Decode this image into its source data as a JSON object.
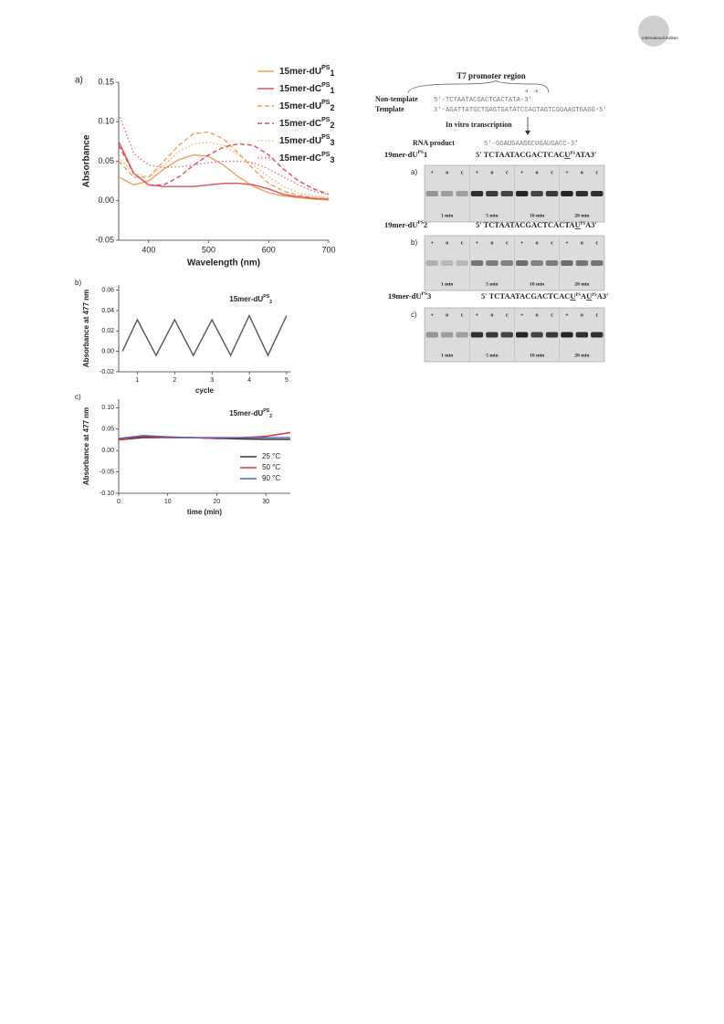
{
  "header": {
    "edition": "International Edition"
  },
  "chart_data": [
    {
      "type": "line",
      "panel": "a)",
      "xlabel": "Wavelength (nm)",
      "ylabel": "Absorbance",
      "xlim": [
        350,
        700
      ],
      "xticks": [
        400,
        500,
        600,
        700
      ],
      "ylim": [
        -0.05,
        0.15
      ],
      "yticks": [
        -0.05,
        {
          "value": 0,
          "label": "0.00"
        },
        0.05,
        {
          "value": 0.1,
          "label": "0.10"
        },
        0.15
      ],
      "legend": "upper right",
      "x": [
        350,
        375,
        400,
        425,
        450,
        475,
        500,
        525,
        550,
        575,
        600,
        625,
        650,
        675,
        700
      ],
      "series": [
        {
          "name": "15mer-dU",
          "name_sup": "PS",
          "name_sub": "1",
          "color": "#f2a05a",
          "dash": "solid",
          "values": [
            0.03,
            0.02,
            0.025,
            0.04,
            0.052,
            0.058,
            0.056,
            0.045,
            0.03,
            0.018,
            0.01,
            0.006,
            0.004,
            0.002,
            0.001
          ]
        },
        {
          "name": "15mer-dC",
          "name_sup": "PS",
          "name_sub": "1",
          "color": "#e0505a",
          "dash": "solid",
          "values": [
            0.075,
            0.035,
            0.02,
            0.018,
            0.018,
            0.018,
            0.02,
            0.022,
            0.022,
            0.02,
            0.015,
            0.008,
            0.005,
            0.003,
            0.002
          ]
        },
        {
          "name": "15mer-dU",
          "name_sup": "PS",
          "name_sub": "2",
          "color": "#f2a05a",
          "dash": "dashed",
          "values": [
            0.05,
            0.03,
            0.03,
            0.05,
            0.07,
            0.085,
            0.087,
            0.078,
            0.06,
            0.04,
            0.022,
            0.012,
            0.007,
            0.004,
            0.003
          ]
        },
        {
          "name": "15mer-dC",
          "name_sup": "PS",
          "name_sub": "2",
          "color": "#e0505a",
          "dash": "dashed",
          "values": [
            0.07,
            0.035,
            0.02,
            0.02,
            0.03,
            0.045,
            0.058,
            0.068,
            0.072,
            0.07,
            0.058,
            0.04,
            0.025,
            0.015,
            0.008
          ]
        },
        {
          "name": "15mer-dU",
          "name_sup": "PS",
          "name_sub": "3",
          "color": "#f5b26a",
          "dash": "dotted",
          "values": [
            0.055,
            0.035,
            0.03,
            0.045,
            0.062,
            0.072,
            0.074,
            0.07,
            0.058,
            0.045,
            0.03,
            0.018,
            0.01,
            0.006,
            0.004
          ]
        },
        {
          "name": "15mer-dC",
          "name_sup": "PS",
          "name_sub": "3",
          "color": "#e8708a",
          "dash": "dotted",
          "values": [
            0.11,
            0.06,
            0.045,
            0.042,
            0.043,
            0.045,
            0.048,
            0.05,
            0.05,
            0.048,
            0.04,
            0.03,
            0.02,
            0.012,
            0.008
          ]
        }
      ]
    },
    {
      "type": "line",
      "panel": "b)",
      "xlabel": "cycle",
      "ylabel": "Absorbance at 477 nm",
      "annotation": {
        "text": "15mer-dU",
        "sup": "PS",
        "sub": "2"
      },
      "xlim": [
        0.5,
        5.1
      ],
      "xticks": [
        1,
        2,
        3,
        4,
        5
      ],
      "ylim": [
        -0.02,
        0.065
      ],
      "yticks": [
        -0.02,
        {
          "value": 0,
          "label": "0.00"
        },
        0.02,
        0.04,
        0.06
      ],
      "x": [
        0.6,
        1,
        1.5,
        2,
        2.5,
        3,
        3.5,
        4,
        4.5,
        5
      ],
      "series": [
        {
          "color": "#555555",
          "dash": "solid",
          "values": [
            0.0,
            0.031,
            -0.004,
            0.031,
            -0.004,
            0.031,
            -0.004,
            0.035,
            -0.004,
            0.035
          ]
        }
      ]
    },
    {
      "type": "line",
      "panel": "c)",
      "xlabel": "time (min)",
      "ylabel": "Absorbance at 477 nm",
      "annotation": {
        "text": "15mer-dU",
        "sup": "PS",
        "sub": "2"
      },
      "legend": "lower right",
      "xlim": [
        0,
        35
      ],
      "xticks": [
        0,
        10,
        20,
        30
      ],
      "ylim": [
        -0.1,
        0.12
      ],
      "yticks": [
        {
          "value": -0.1,
          "label": "-0.10"
        },
        -0.05,
        {
          "value": 0,
          "label": "0.00"
        },
        0.05,
        {
          "value": 0.1,
          "label": "0.10"
        }
      ],
      "x": [
        0,
        5,
        10,
        15,
        20,
        25,
        30,
        35
      ],
      "series": [
        {
          "name": "25 °C",
          "color": "#333333",
          "dash": "solid",
          "values": [
            0.025,
            0.03,
            0.03,
            0.03,
            0.028,
            0.027,
            0.026,
            0.026
          ]
        },
        {
          "name": "50 °C",
          "color": "#e03030",
          "dash": "solid",
          "values": [
            0.025,
            0.033,
            0.03,
            0.03,
            0.028,
            0.03,
            0.033,
            0.042
          ]
        },
        {
          "name": "90 °C",
          "color": "#5060c0",
          "dash": "solid",
          "values": [
            0.028,
            0.035,
            0.032,
            0.03,
            0.03,
            0.03,
            0.03,
            0.03
          ]
        }
      ]
    }
  ],
  "gel": {
    "region": "T7 promoter region",
    "non_template_label": "Non-template",
    "non_template_seq": "5′-TCTAATACGACTCACTATA-3′",
    "positions": [
      "-4",
      "-2"
    ],
    "template_label": "Template",
    "template_seq": "3′-AGATTATGCTGAGTGATATCCAGTAGTCGGAAGTGAGG-5′",
    "step": "In vitro transcription",
    "rna_label": "RNA product",
    "rna_seq": "5′-GGAUGAAGGCUGAUGACC-3′",
    "lanes": [
      "+",
      "o",
      "c"
    ],
    "times": [
      "1 min",
      "5 min",
      "10 min",
      "20 min"
    ],
    "panels": [
      {
        "label": "a)",
        "name": "19mer-dU",
        "name_sup": "PS",
        "name_num": "1",
        "seq": [
          {
            "text": "5′ TCTAATACGACTCAC"
          },
          {
            "text": "U",
            "underline": true
          },
          {
            "text": "PS",
            "sup": true
          },
          {
            "text": "ATA3′"
          }
        ]
      },
      {
        "label": "b)",
        "name": "19mer-dU",
        "name_sup": "PS",
        "name_num": "2",
        "seq": [
          {
            "text": "5′ TCTAATACGACTCACTA"
          },
          {
            "text": "U",
            "underline": true
          },
          {
            "text": "PS",
            "sup": true
          },
          {
            "text": "A3′"
          }
        ]
      },
      {
        "label": "c)",
        "name": "19mer-dU",
        "name_sup": "PS",
        "name_num": "3",
        "seq": [
          {
            "text": "5′ TCTAATACGACTCAC"
          },
          {
            "text": "U",
            "underline": true
          },
          {
            "text": "PS",
            "sup": true
          },
          {
            "text": "A"
          },
          {
            "text": "U",
            "underline": true
          },
          {
            "text": "PS",
            "sup": true
          },
          {
            "text": "A3′"
          }
        ]
      }
    ]
  }
}
